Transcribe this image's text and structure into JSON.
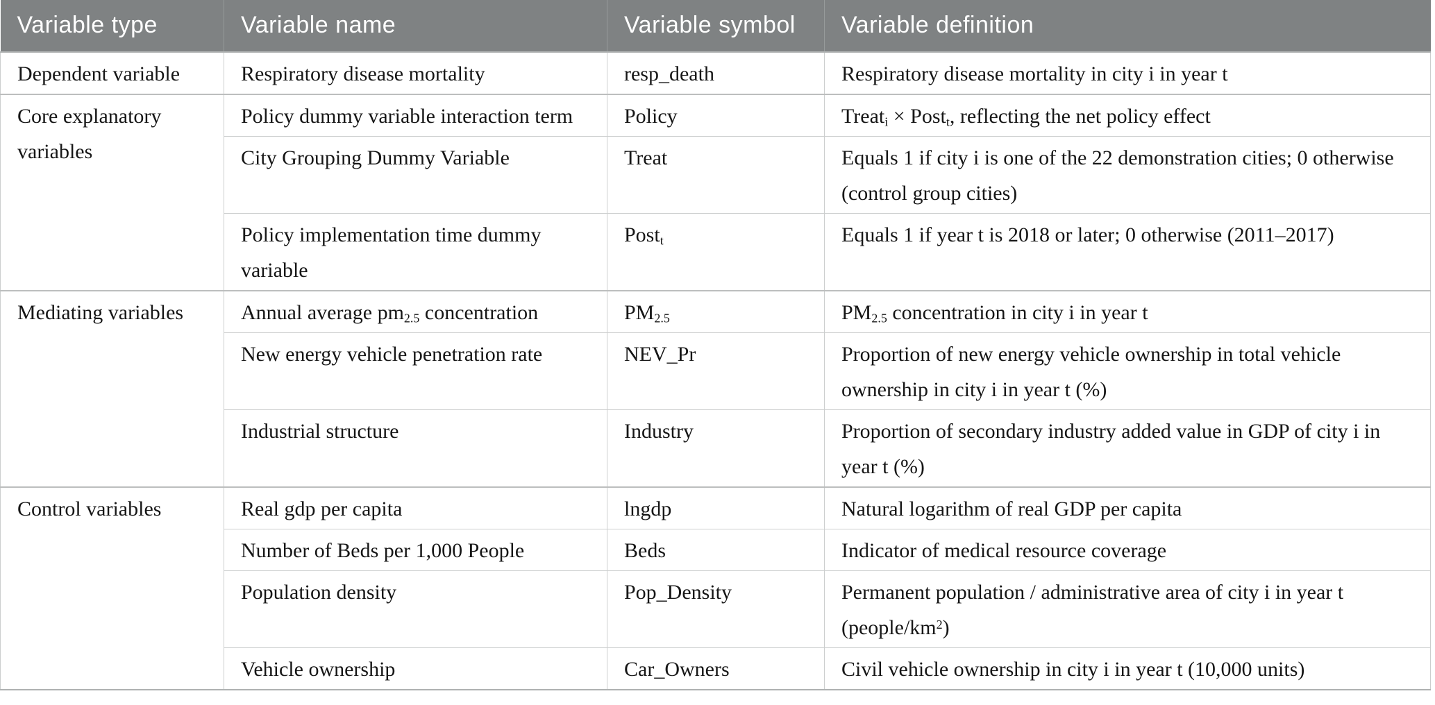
{
  "page": {
    "background": "#ffffff"
  },
  "table": {
    "header_bg": "#7f8283",
    "header_text_color": "#ffffff",
    "border_color": "#cccece",
    "group_border_color": "#bcbebe",
    "columns": [
      "Variable type",
      "Variable name",
      "Variable symbol",
      "Variable definition"
    ],
    "rows": [
      {
        "group": {
          "label": "Dependent variable",
          "rowspan": 1
        },
        "name": "Respiratory disease mortality",
        "symbol": "resp_death",
        "definition": "Respiratory disease mortality in city i in year t"
      },
      {
        "group": {
          "label": "Core explanatory variables",
          "rowspan": 3
        },
        "name": "Policy dummy variable interaction term",
        "symbol": "Policy",
        "definition": "Treat<sub>i</sub> × Post<sub>t</sub>, reflecting the net policy effect"
      },
      {
        "name": "City Grouping Dummy Variable",
        "symbol": "Treat",
        "definition": "Equals 1 if city i is one of the 22 demonstration cities; 0 otherwise (control group cities)"
      },
      {
        "name": "Policy implementation time dummy variable",
        "symbol": "Post<sub>t</sub>",
        "definition": "Equals 1 if year t is 2018 or later; 0 otherwise (2011–2017)"
      },
      {
        "group": {
          "label": "Mediating variables",
          "rowspan": 3
        },
        "name": "Annual average pm<sub>2.5</sub> concentration",
        "symbol": "PM<sub>2.5</sub>",
        "definition": "PM<sub>2.5</sub> concentration in city i in year t"
      },
      {
        "name": "New energy vehicle penetration rate",
        "symbol": "NEV_Pr",
        "definition": "Proportion of new energy vehicle ownership in total vehicle ownership in city i in year t (%)"
      },
      {
        "name": "Industrial structure",
        "symbol": "Industry",
        "definition": "Proportion of secondary industry added value in GDP of city i in year t (%)"
      },
      {
        "group": {
          "label": "Control variables",
          "rowspan": 4
        },
        "name": "Real gdp per capita",
        "symbol": "lngdp",
        "definition": "Natural logarithm of real GDP per capita"
      },
      {
        "name": "Number of Beds per 1,000 People",
        "symbol": "Beds",
        "definition": "Indicator of medical resource coverage"
      },
      {
        "name": "Population density",
        "symbol": "Pop_Density",
        "definition": "Permanent population / administrative area of city i in year t (people/km<sup>2</sup>)"
      },
      {
        "name": "Vehicle ownership",
        "symbol": "Car_Owners",
        "definition": "Civil vehicle ownership in city i in year t (10,000 units)"
      }
    ]
  }
}
